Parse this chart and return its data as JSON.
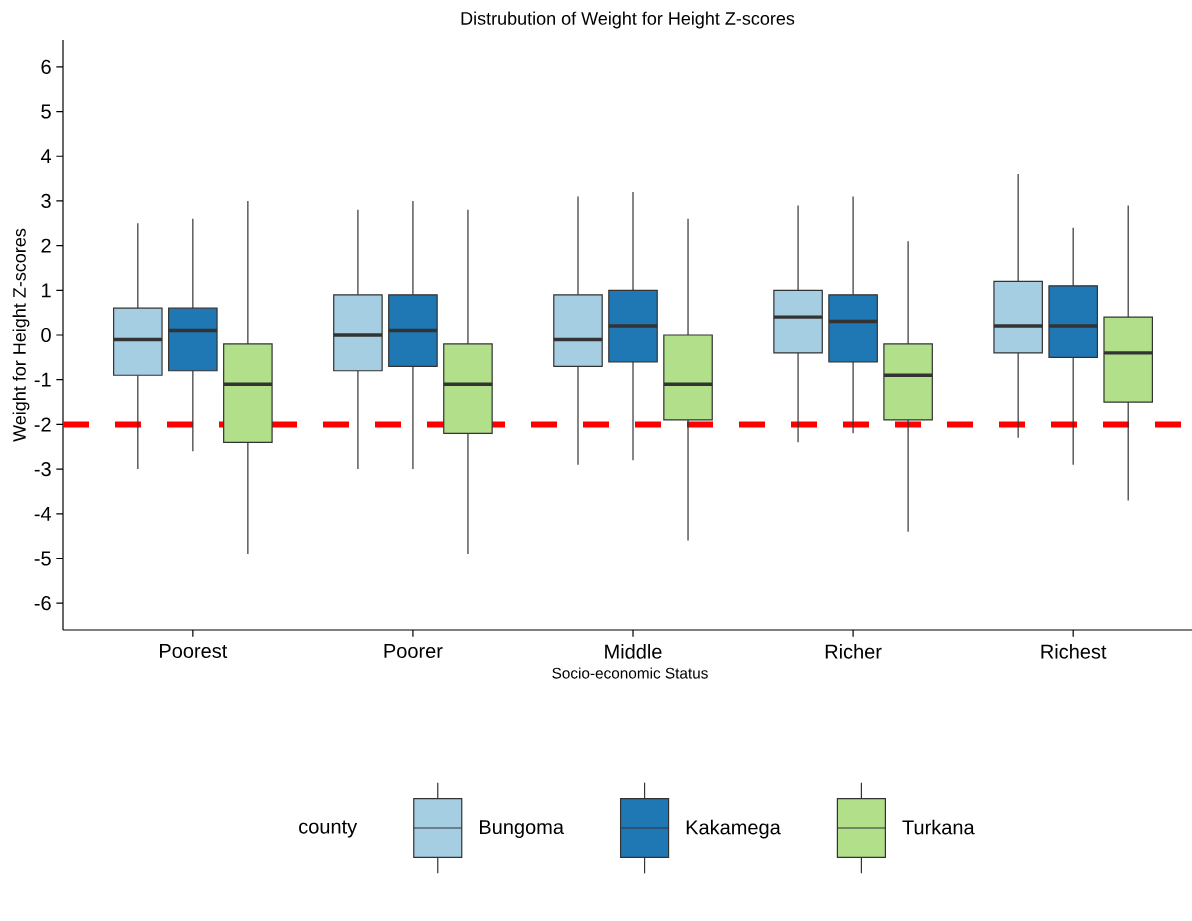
{
  "chart_data": {
    "type": "box",
    "title": "Distrubution of Weight for Height Z-scores",
    "xlabel": "Socio-economic Status",
    "ylabel": "Weight for Height Z-scores",
    "legend_title": "county",
    "legend": "bottom",
    "categories": [
      "Poorest",
      "Poorer",
      "Middle",
      "Richer",
      "Richest"
    ],
    "ylim": [
      -6.6,
      6.6
    ],
    "yticks": [
      -6,
      -5,
      -4,
      -3,
      -2,
      -1,
      0,
      1,
      2,
      3,
      4,
      5,
      6
    ],
    "ref_lines": [
      {
        "axis": "y",
        "value": -2,
        "color": "#ff0000",
        "line_style": "dashed"
      }
    ],
    "series": [
      {
        "name": "Bungoma",
        "color": "#a6cee3",
        "boxes": [
          {
            "low": -3.0,
            "q1": -0.9,
            "median": -0.1,
            "q3": 0.6,
            "high": 2.5
          },
          {
            "low": -3.0,
            "q1": -0.8,
            "median": 0.0,
            "q3": 0.9,
            "high": 2.8
          },
          {
            "low": -2.9,
            "q1": -0.7,
            "median": -0.1,
            "q3": 0.9,
            "high": 3.1
          },
          {
            "low": -2.4,
            "q1": -0.4,
            "median": 0.4,
            "q3": 1.0,
            "high": 2.9
          },
          {
            "low": -2.3,
            "q1": -0.4,
            "median": 0.2,
            "q3": 1.2,
            "high": 3.6
          }
        ]
      },
      {
        "name": "Kakamega",
        "color": "#1f78b4",
        "boxes": [
          {
            "low": -2.6,
            "q1": -0.8,
            "median": 0.1,
            "q3": 0.6,
            "high": 2.6
          },
          {
            "low": -3.0,
            "q1": -0.7,
            "median": 0.1,
            "q3": 0.9,
            "high": 3.0
          },
          {
            "low": -2.8,
            "q1": -0.6,
            "median": 0.2,
            "q3": 1.0,
            "high": 3.2
          },
          {
            "low": -2.2,
            "q1": -0.6,
            "median": 0.3,
            "q3": 0.9,
            "high": 3.1
          },
          {
            "low": -2.9,
            "q1": -0.5,
            "median": 0.2,
            "q3": 1.1,
            "high": 2.4
          }
        ]
      },
      {
        "name": "Turkana",
        "color": "#b2df8a",
        "boxes": [
          {
            "low": -4.9,
            "q1": -2.4,
            "median": -1.1,
            "q3": -0.2,
            "high": 3.0
          },
          {
            "low": -4.9,
            "q1": -2.2,
            "median": -1.1,
            "q3": -0.2,
            "high": 2.8
          },
          {
            "low": -4.6,
            "q1": -1.9,
            "median": -1.1,
            "q3": 0.0,
            "high": 2.6
          },
          {
            "low": -4.4,
            "q1": -1.9,
            "median": -0.9,
            "q3": -0.2,
            "high": 2.1
          },
          {
            "low": -3.7,
            "q1": -1.5,
            "median": -0.4,
            "q3": 0.4,
            "high": 2.9
          }
        ]
      }
    ]
  }
}
